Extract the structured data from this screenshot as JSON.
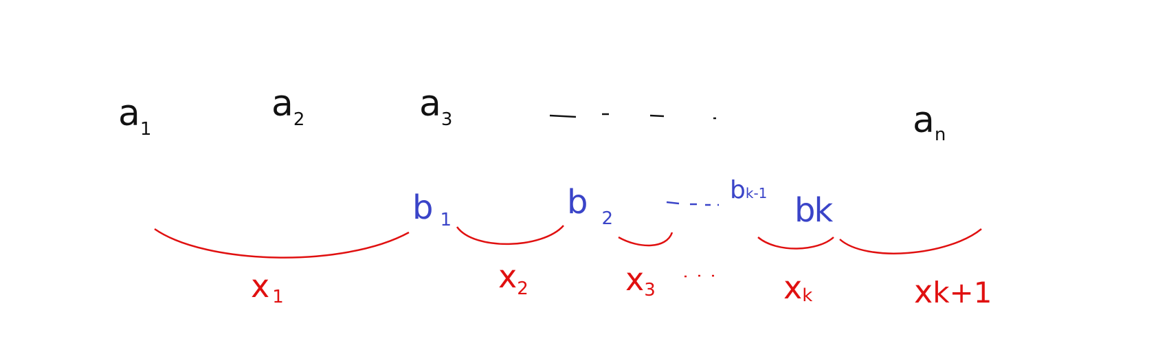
{
  "top_row": [
    {
      "base": "a",
      "sub": "1"
    },
    {
      "base": "a",
      "sub": "2"
    },
    {
      "base": "a",
      "sub": "3"
    },
    {
      "base": "a",
      "sub": "n"
    }
  ],
  "middle_row": [
    {
      "base": "b",
      "sub": "1"
    },
    {
      "base": "b",
      "sub": "2"
    },
    {
      "base": "b",
      "sub": "k-1"
    },
    {
      "base": "b",
      "sub": "k"
    }
  ],
  "bottom_row": [
    {
      "base": "x",
      "sub": "1"
    },
    {
      "base": "x",
      "sub": "2"
    },
    {
      "base": "x",
      "sub": "3"
    },
    {
      "base": "x",
      "sub": "k"
    },
    {
      "base": "x",
      "sub": "k+1"
    }
  ]
}
